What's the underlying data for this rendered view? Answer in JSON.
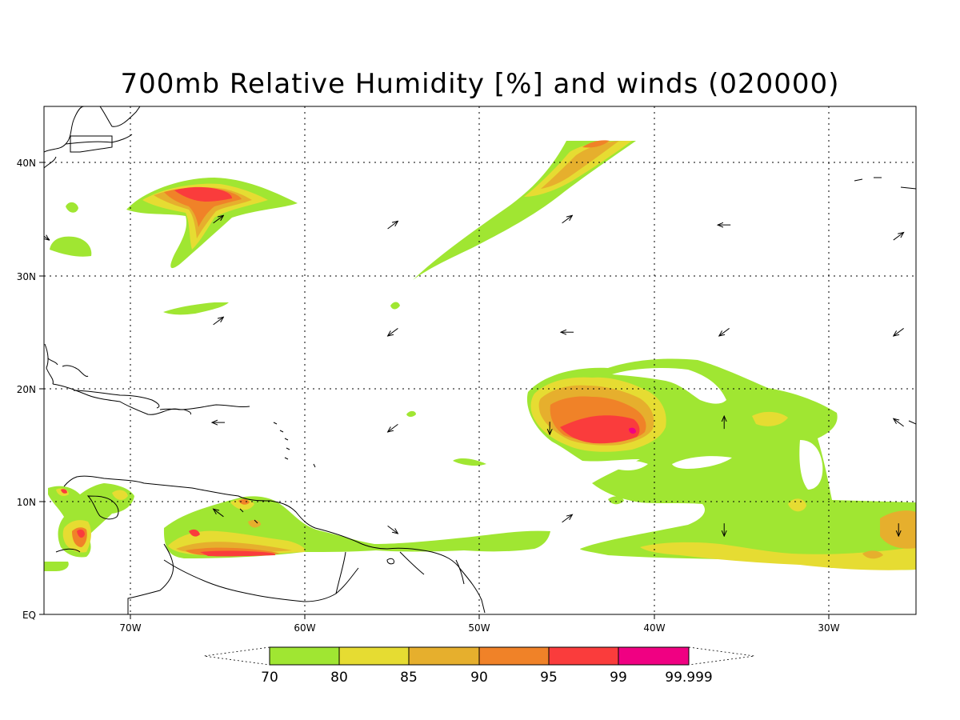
{
  "title": "700mb Relative Humidity [%] and winds (020000)",
  "lon_labels": [
    "70W",
    "60W",
    "50W",
    "40W",
    "30W"
  ],
  "lat_labels": [
    "40N",
    "30N",
    "20N",
    "10N",
    "EQ"
  ],
  "colorbar": {
    "labels": [
      "70",
      "80",
      "85",
      "90",
      "95",
      "99",
      "99.999"
    ],
    "colors": [
      "#a0e632",
      "#e6dc32",
      "#e6af2d",
      "#f08228",
      "#fa3c3c",
      "#f00082"
    ]
  },
  "chart_data": {
    "type": "heatmap",
    "variable": "700mb Relative Humidity [%] and winds",
    "valid_time": "020000",
    "domain": {
      "lon_range": [
        -75,
        -25
      ],
      "lat_range": [
        0,
        45
      ]
    },
    "levels": [
      70,
      80,
      85,
      90,
      95,
      99,
      99.999
    ],
    "grid": true,
    "colorbar_placement": "bottom",
    "humid_regions": [
      {
        "center": [
          -65.5,
          36.5
        ],
        "max_level": "95-99"
      },
      {
        "center": [
          -46,
          37
        ],
        "max_level": "90-95"
      },
      {
        "center": [
          -42,
          17
        ],
        "max_level": "99-99.999"
      },
      {
        "center": [
          -33,
          10
        ],
        "max_level": "80-85"
      },
      {
        "center": [
          -26,
          7
        ],
        "max_level": "85-90"
      },
      {
        "center": [
          -64,
          7
        ],
        "max_level": "95-99"
      },
      {
        "center": [
          -72.5,
          8
        ],
        "max_level": "95-99"
      }
    ],
    "wind_vectors": [
      {
        "lon": -75,
        "lat": 33.5,
        "dir": "SE"
      },
      {
        "lon": -65,
        "lat": 35,
        "dir": "NE"
      },
      {
        "lon": -55,
        "lat": 34.5,
        "dir": "NE"
      },
      {
        "lon": -45,
        "lat": 35,
        "dir": "NE"
      },
      {
        "lon": -36,
        "lat": 34.5,
        "dir": "W"
      },
      {
        "lon": -26,
        "lat": 33.5,
        "dir": "NE"
      },
      {
        "lon": -65,
        "lat": 26,
        "dir": "NE"
      },
      {
        "lon": -55,
        "lat": 25,
        "dir": "SW"
      },
      {
        "lon": -45,
        "lat": 25,
        "dir": "W"
      },
      {
        "lon": -36,
        "lat": 25,
        "dir": "SW"
      },
      {
        "lon": -26,
        "lat": 25,
        "dir": "SW"
      },
      {
        "lon": -65,
        "lat": 17,
        "dir": "W"
      },
      {
        "lon": -55,
        "lat": 16.5,
        "dir": "SW"
      },
      {
        "lon": -46,
        "lat": 16.5,
        "dir": "S"
      },
      {
        "lon": -36,
        "lat": 17,
        "dir": "N"
      },
      {
        "lon": -26,
        "lat": 17,
        "dir": "NW"
      },
      {
        "lon": -65,
        "lat": 9,
        "dir": "NW"
      },
      {
        "lon": -55,
        "lat": 7.5,
        "dir": "SE"
      },
      {
        "lon": -45,
        "lat": 8.5,
        "dir": "NE"
      },
      {
        "lon": -36,
        "lat": 7.5,
        "dir": "S"
      },
      {
        "lon": -26,
        "lat": 7.5,
        "dir": "S"
      }
    ]
  }
}
